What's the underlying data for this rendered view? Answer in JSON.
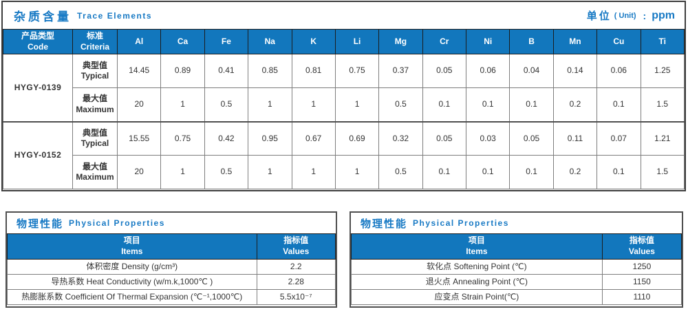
{
  "colors": {
    "accent_blue": "#1277bd",
    "title_text_blue": "#1779c4",
    "header_text": "#ffffff",
    "body_text": "#333333",
    "panel_border": "#3d3d3d",
    "cell_border": "#7d7d7d"
  },
  "trace_section": {
    "title_zh": "杂质含量",
    "title_en": "Trace Elements",
    "unit": {
      "zh": "单位",
      "paren": "( Unit)",
      "colon": ":",
      "value": "ppm"
    },
    "table": {
      "col1_header": {
        "zh": "产品类型",
        "en": "Code"
      },
      "col2_header": {
        "zh": "标准",
        "en": "Criteria"
      },
      "elements": [
        "Al",
        "Ca",
        "Fe",
        "Na",
        "K",
        "Li",
        "Mg",
        "Cr",
        "Ni",
        "B",
        "Mn",
        "Cu",
        "Ti"
      ],
      "groups": [
        {
          "code": "HYGY-0139",
          "rows": [
            {
              "criteria_zh": "典型值",
              "criteria_en": "Typical",
              "values": [
                "14.45",
                "0.89",
                "0.41",
                "0.85",
                "0.81",
                "0.75",
                "0.37",
                "0.05",
                "0.06",
                "0.04",
                "0.14",
                "0.06",
                "1.25"
              ]
            },
            {
              "criteria_zh": "最大值",
              "criteria_en": "Maximum",
              "values": [
                "20",
                "1",
                "0.5",
                "1",
                "1",
                "1",
                "0.5",
                "0.1",
                "0.1",
                "0.1",
                "0.2",
                "0.1",
                "1.5"
              ]
            }
          ]
        },
        {
          "code": "HYGY-0152",
          "rows": [
            {
              "criteria_zh": "典型值",
              "criteria_en": "Typical",
              "values": [
                "15.55",
                "0.75",
                "0.42",
                "0.95",
                "0.67",
                "0.69",
                "0.32",
                "0.05",
                "0.03",
                "0.05",
                "0.11",
                "0.07",
                "1.21"
              ]
            },
            {
              "criteria_zh": "最大值",
              "criteria_en": "Maximum",
              "values": [
                "20",
                "1",
                "0.5",
                "1",
                "1",
                "1",
                "0.5",
                "0.1",
                "0.1",
                "0.1",
                "0.2",
                "0.1",
                "1.5"
              ]
            }
          ]
        }
      ]
    }
  },
  "physical_sections": [
    {
      "title_zh": "物理性能",
      "title_en": "Physical Properties",
      "header": {
        "items_zh": "项目",
        "items_en": "Items",
        "values_zh": "指标值",
        "values_en": "Values"
      },
      "rows": [
        {
          "item": "体积密度 Density (g/cm³)",
          "value": "2.2"
        },
        {
          "item": "导热系数 Heat Conductivity (w/m.k,1000℃ )",
          "value": "2.28"
        },
        {
          "item": "热膨胀系数 Coefficient Of Thermal Expansion (℃⁻¹,1000℃)",
          "value": "5.5x10⁻⁷"
        }
      ]
    },
    {
      "title_zh": "物理性能",
      "title_en": "Physical Properties",
      "header": {
        "items_zh": "项目",
        "items_en": "Items",
        "values_zh": "指标值",
        "values_en": "Values"
      },
      "rows": [
        {
          "item": "软化点 Softening Point (℃)",
          "value": "1250"
        },
        {
          "item": "退火点 Annealing Point (℃)",
          "value": "1150"
        },
        {
          "item": "应变点 Strain Point(℃)",
          "value": "1110"
        }
      ]
    }
  ]
}
